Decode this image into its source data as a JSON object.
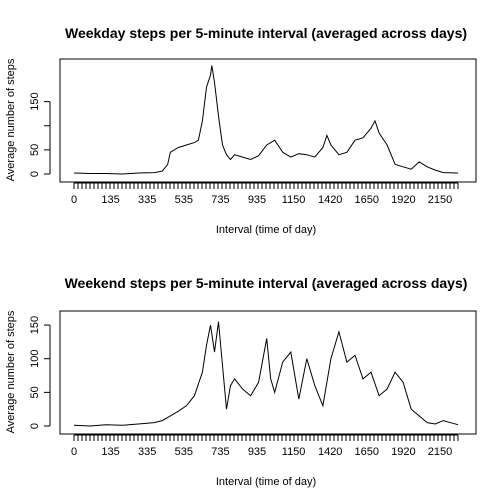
{
  "chart_data": [
    {
      "type": "line",
      "title": "Weekday steps per 5-minute interval (averaged across days)",
      "xlabel": "Interval (time of day)",
      "ylabel": "Average number of steps",
      "xlim": [
        0,
        2355
      ],
      "ylim": [
        0,
        230
      ],
      "x_tick_labels": [
        "0",
        "135",
        "335",
        "535",
        "735",
        "935",
        "1150",
        "1420",
        "1650",
        "1920",
        "2150"
      ],
      "y_ticks": [
        0,
        50,
        100,
        150
      ],
      "y_tick_labels": [
        "0",
        "50",
        "",
        "150"
      ],
      "grid": false,
      "series": [
        {
          "x": [
            "0",
            "100",
            "200",
            "300",
            "400",
            "500",
            "530",
            "550",
            "600",
            "630",
            "700",
            "730",
            "745",
            "800",
            "815",
            "830",
            "835",
            "845",
            "900",
            "915",
            "930",
            "945",
            "1000",
            "1030",
            "1100",
            "1130",
            "1200",
            "1230",
            "1300",
            "1330",
            "1400",
            "1430",
            "1500",
            "1530",
            "1545",
            "1600",
            "1630",
            "1700",
            "1730",
            "1800",
            "1830",
            "1845",
            "1900",
            "1930",
            "2000",
            "2030",
            "2100",
            "2130",
            "2200",
            "2230",
            "2300",
            "2355"
          ],
          "y": [
            2,
            1,
            1,
            0,
            2,
            3,
            6,
            20,
            45,
            55,
            60,
            65,
            70,
            110,
            180,
            205,
            225,
            190,
            120,
            60,
            40,
            30,
            40,
            35,
            30,
            38,
            60,
            70,
            45,
            35,
            42,
            40,
            35,
            55,
            80,
            60,
            40,
            45,
            70,
            75,
            95,
            110,
            85,
            60,
            20,
            15,
            10,
            25,
            15,
            8,
            3,
            2
          ]
        }
      ]
    },
    {
      "type": "line",
      "title": "Weekend steps per 5-minute interval (averaged across days)",
      "xlabel": "Interval (time of day)",
      "ylabel": "Average number of steps",
      "xlim": [
        0,
        2355
      ],
      "ylim": [
        0,
        165
      ],
      "x_tick_labels": [
        "0",
        "135",
        "335",
        "535",
        "735",
        "935",
        "1150",
        "1420",
        "1650",
        "1920",
        "2150"
      ],
      "y_ticks": [
        0,
        50,
        100,
        150
      ],
      "y_tick_labels": [
        "0",
        "50",
        "100",
        "150"
      ],
      "grid": false,
      "series": [
        {
          "x": [
            "0",
            "100",
            "200",
            "300",
            "400",
            "500",
            "530",
            "600",
            "630",
            "700",
            "730",
            "800",
            "815",
            "830",
            "845",
            "900",
            "915",
            "930",
            "945",
            "1000",
            "1030",
            "1100",
            "1130",
            "1200",
            "1215",
            "1230",
            "1300",
            "1330",
            "1400",
            "1430",
            "1500",
            "1530",
            "1600",
            "1630",
            "1700",
            "1730",
            "1800",
            "1830",
            "1900",
            "1930",
            "2000",
            "2030",
            "2100",
            "2130",
            "2200",
            "2230",
            "2300",
            "2355"
          ],
          "y": [
            1,
            0,
            2,
            1,
            3,
            5,
            8,
            15,
            22,
            30,
            45,
            80,
            120,
            150,
            110,
            155,
            90,
            25,
            60,
            70,
            55,
            45,
            65,
            130,
            70,
            50,
            95,
            110,
            40,
            100,
            60,
            30,
            100,
            140,
            95,
            105,
            70,
            80,
            45,
            55,
            80,
            65,
            25,
            15,
            5,
            3,
            8,
            2
          ]
        }
      ]
    }
  ]
}
